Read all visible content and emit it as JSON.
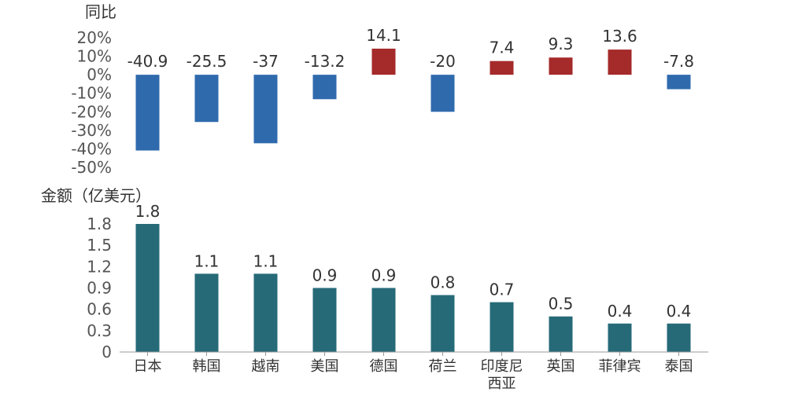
{
  "chart_data": [
    {
      "type": "bar",
      "title": "同比",
      "categories": [
        "日本",
        "韩国",
        "越南",
        "美国",
        "德国",
        "荷兰",
        "印度尼西亚",
        "英国",
        "菲律宾",
        "泰国"
      ],
      "values": [
        -40.9,
        -25.5,
        -37,
        -13.2,
        14.1,
        -20,
        7.4,
        9.3,
        13.6,
        -7.8
      ],
      "value_labels": [
        "-40.9",
        "-25.5",
        "-37",
        "-13.2",
        "14.1",
        "-20",
        "7.4",
        "9.3",
        "13.6",
        "-7.8"
      ],
      "ylim": [
        -50,
        20
      ],
      "yticks": [
        20,
        10,
        0,
        -10,
        -20,
        -30,
        -40,
        -50
      ],
      "ytick_labels": [
        "20%",
        "10%",
        "0%",
        "-10%",
        "-20%",
        "-30%",
        "-40%",
        "-50%"
      ],
      "colors": {
        "positive": "#a52a2a",
        "negative": "#2f6aad"
      }
    },
    {
      "type": "bar",
      "title": "金额（亿美元）",
      "categories": [
        "日本",
        "韩国",
        "越南",
        "美国",
        "德国",
        "荷兰",
        "印度尼西亚",
        "英国",
        "菲律宾",
        "泰国"
      ],
      "category_labels": [
        [
          "日本"
        ],
        [
          "韩国"
        ],
        [
          "越南"
        ],
        [
          "美国"
        ],
        [
          "德国"
        ],
        [
          "荷兰"
        ],
        [
          "印度尼",
          "西亚"
        ],
        [
          "英国"
        ],
        [
          "菲律宾"
        ],
        [
          "泰国"
        ]
      ],
      "values": [
        1.8,
        1.1,
        1.1,
        0.9,
        0.9,
        0.8,
        0.7,
        0.5,
        0.4,
        0.4
      ],
      "value_labels": [
        "1.8",
        "1.1",
        "1.1",
        "0.9",
        "0.9",
        "0.8",
        "0.7",
        "0.5",
        "0.4",
        "0.4"
      ],
      "ylim": [
        0,
        1.8
      ],
      "yticks": [
        0,
        0.3,
        0.6,
        0.9,
        1.2,
        1.5,
        1.8
      ],
      "ytick_labels": [
        "0",
        "0.3",
        "0.6",
        "0.9",
        "1.2",
        "1.5",
        "1.8"
      ],
      "colors": {
        "bar": "#266a78"
      }
    }
  ]
}
